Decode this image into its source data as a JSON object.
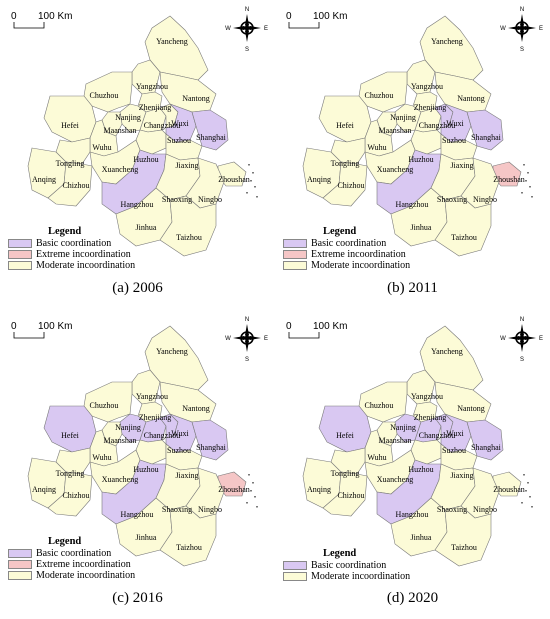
{
  "scale": {
    "zero": "0",
    "distance": "100 Km"
  },
  "compass": {
    "north": "N",
    "south": "S",
    "east": "E",
    "west": "W"
  },
  "legend_title": "Legend",
  "colors": {
    "basic": "#d9c8f2",
    "extreme": "#f5c6c6",
    "moderate": "#fcfbd7",
    "border": "#7a7a7a"
  },
  "cities": [
    "Yancheng",
    "Yangzhou",
    "Nantong",
    "Chuzhou",
    "Zhenjiang",
    "Nanjing",
    "Hefei",
    "Maanshan",
    "Changzhou",
    "Wuxi",
    "Suzhou",
    "Shanghai",
    "Wuhu",
    "Tongling",
    "Huzhou",
    "Jiaxing",
    "Anqing",
    "Chizhou",
    "Xuancheng",
    "Zhoushan",
    "Hangzhou",
    "Shaoxing",
    "Ningbo",
    "Jinhua",
    "Taizhou"
  ],
  "panels": [
    {
      "caption": "(a) 2006",
      "legend": [
        {
          "label": "Basic coordination",
          "color": "basic"
        },
        {
          "label": "Extreme incoordination",
          "color": "extreme"
        },
        {
          "label": "Moderate incoordination",
          "color": "moderate"
        }
      ],
      "basic_cities": [
        "Suzhou",
        "Shanghai",
        "Hangzhou"
      ],
      "extreme_cities": []
    },
    {
      "caption": "(b) 2011",
      "legend": [
        {
          "label": "Basic coordination",
          "color": "basic"
        },
        {
          "label": "Extreme incoordination",
          "color": "extreme"
        },
        {
          "label": "Moderate incoordination",
          "color": "moderate"
        }
      ],
      "basic_cities": [
        "Wuxi",
        "Suzhou",
        "Shanghai",
        "Hangzhou"
      ],
      "extreme_cities": [
        "Zhoushan"
      ]
    },
    {
      "caption": "(c) 2016",
      "legend": [
        {
          "label": "Basic coordination",
          "color": "basic"
        },
        {
          "label": "Extreme incoordination",
          "color": "extreme"
        },
        {
          "label": "Moderate incoordination",
          "color": "moderate"
        }
      ],
      "basic_cities": [
        "Hefei",
        "Nanjing",
        "Changzhou",
        "Wuxi",
        "Suzhou",
        "Shanghai",
        "Hangzhou"
      ],
      "extreme_cities": [
        "Zhoushan"
      ]
    },
    {
      "caption": "(d) 2020",
      "legend": [
        {
          "label": "Basic coordination",
          "color": "basic"
        },
        {
          "label": "Moderate incoordination",
          "color": "moderate"
        }
      ],
      "basic_cities": [
        "Hefei",
        "Nanjing",
        "Changzhou",
        "Wuxi",
        "Suzhou",
        "Shanghai",
        "Hangzhou"
      ],
      "extreme_cities": []
    }
  ]
}
